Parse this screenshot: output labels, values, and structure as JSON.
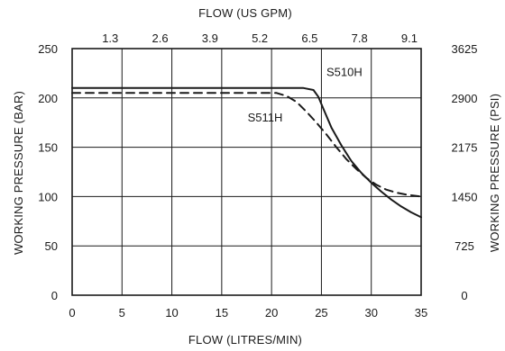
{
  "chart_data": {
    "type": "line",
    "title": "",
    "xlabel": "FLOW (LITRES/MIN)",
    "ylabel": "WORKING PRESSURE (BAR)",
    "x2label": "FLOW (US GPM)",
    "y2label": "WORKING PRESSURE (PSI)",
    "xlim": [
      0,
      35
    ],
    "ylim": [
      0,
      250
    ],
    "x_ticks": [
      0,
      5,
      10,
      15,
      20,
      25,
      30,
      35
    ],
    "y_ticks": [
      0,
      50,
      100,
      150,
      200,
      250
    ],
    "x2_ticks": [
      {
        "x": 5,
        "label": "1.3"
      },
      {
        "x": 10,
        "label": "2.6"
      },
      {
        "x": 15,
        "label": "3.9"
      },
      {
        "x": 20,
        "label": "5.2"
      },
      {
        "x": 25,
        "label": "6.5"
      },
      {
        "x": 30,
        "label": "7.8"
      },
      {
        "x": 35,
        "label": "9.1"
      }
    ],
    "y2_ticks": [
      {
        "y": 0,
        "label": "0"
      },
      {
        "y": 50,
        "label": "725"
      },
      {
        "y": 100,
        "label": "1450"
      },
      {
        "y": 150,
        "label": "2175"
      },
      {
        "y": 200,
        "label": "2900"
      },
      {
        "y": 250,
        "label": "3625"
      }
    ],
    "grid": true,
    "series": [
      {
        "name": "S510H",
        "style": "solid",
        "label_at": {
          "x": 25.5,
          "y": 222
        },
        "points": [
          {
            "x": 0,
            "y": 210
          },
          {
            "x": 23.2,
            "y": 210
          },
          {
            "x": 24.2,
            "y": 208
          },
          {
            "x": 24.7,
            "y": 201
          },
          {
            "x": 25.2,
            "y": 189
          },
          {
            "x": 26,
            "y": 170
          },
          {
            "x": 27,
            "y": 152
          },
          {
            "x": 28,
            "y": 136
          },
          {
            "x": 29,
            "y": 124
          },
          {
            "x": 30,
            "y": 114
          },
          {
            "x": 31,
            "y": 105
          },
          {
            "x": 32,
            "y": 97
          },
          {
            "x": 33,
            "y": 90
          },
          {
            "x": 34,
            "y": 84
          },
          {
            "x": 35,
            "y": 79
          }
        ]
      },
      {
        "name": "S511H",
        "style": "dashed",
        "label_at": {
          "x": 17.6,
          "y": 176
        },
        "points": [
          {
            "x": 0,
            "y": 205
          },
          {
            "x": 20.5,
            "y": 205
          },
          {
            "x": 21.5,
            "y": 202
          },
          {
            "x": 22.5,
            "y": 196
          },
          {
            "x": 23.5,
            "y": 186
          },
          {
            "x": 24.5,
            "y": 175
          },
          {
            "x": 25.5,
            "y": 163
          },
          {
            "x": 26.5,
            "y": 150
          },
          {
            "x": 27.5,
            "y": 138
          },
          {
            "x": 28.5,
            "y": 128
          },
          {
            "x": 29.5,
            "y": 119
          },
          {
            "x": 30.5,
            "y": 112
          },
          {
            "x": 31.5,
            "y": 107
          },
          {
            "x": 32.5,
            "y": 104
          },
          {
            "x": 33.5,
            "y": 102
          },
          {
            "x": 35,
            "y": 100
          }
        ]
      }
    ]
  }
}
